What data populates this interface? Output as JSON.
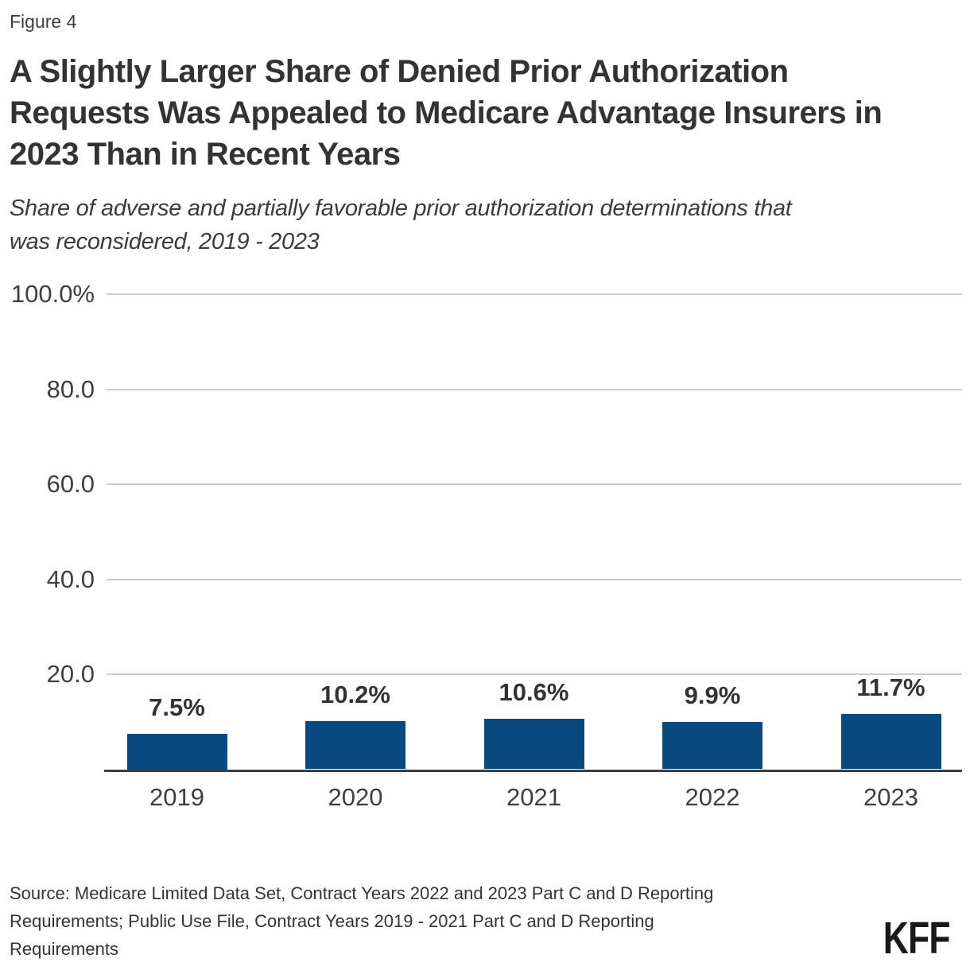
{
  "header": {
    "figure_label": "Figure 4",
    "title_lines": [
      "A Slightly Larger Share of Denied Prior Authorization",
      "Requests Was Appealed to Medicare Advantage Insurers in",
      "2023 Than in Recent Years"
    ],
    "subtitle_lines": [
      "Share of adverse and partially favorable prior authorization determinations that",
      "was reconsidered, 2019 - 2023"
    ]
  },
  "footer": {
    "source_lines": [
      "Source: Medicare Limited Data Set, Contract Years 2022 and 2023 Part C and D Reporting",
      "Requirements; Public Use File, Contract Years 2019 - 2021 Part C and D Reporting",
      "Requirements"
    ],
    "logo_text": "KFF"
  },
  "colors": {
    "bar": "#084a80",
    "grid": "#cccccc",
    "axis_line": "#3d3d3d",
    "text_dark": "#333333",
    "text_axis": "#3f3f3f"
  },
  "chart_data": {
    "type": "bar",
    "title": "A Slightly Larger Share of Denied Prior Authorization Requests Was Appealed to Medicare Advantage Insurers in 2023 Than in Recent Years",
    "subtitle": "Share of adverse and partially favorable prior authorization determinations that was reconsidered, 2019 - 2023",
    "categories": [
      "2019",
      "2020",
      "2021",
      "2022",
      "2023"
    ],
    "values": [
      7.5,
      10.2,
      10.6,
      9.9,
      11.7
    ],
    "value_labels": [
      "7.5%",
      "10.2%",
      "10.6%",
      "9.9%",
      "11.7%"
    ],
    "xlabel": "",
    "ylabel": "",
    "ylim": [
      0,
      100
    ],
    "yticks": [
      {
        "value": 100,
        "label": "100.0%"
      },
      {
        "value": 80,
        "label": "80.0"
      },
      {
        "value": 60,
        "label": "60.0"
      },
      {
        "value": 40,
        "label": "40.0"
      },
      {
        "value": 20,
        "label": "20.0"
      }
    ],
    "grid": true,
    "legend": "none",
    "source": "Source: Medicare Limited Data Set, Contract Years 2022 and 2023 Part C and D Reporting Requirements; Public Use File, Contract Years 2019 - 2021 Part C and D Reporting Requirements"
  }
}
